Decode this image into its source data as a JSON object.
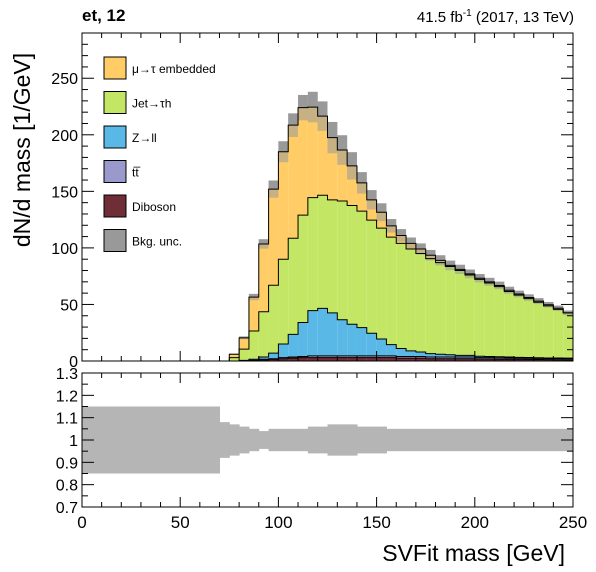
{
  "header": {
    "channel_label": "et, 12",
    "lumi_value": "41.5 fb",
    "lumi_exponent": "-1",
    "lumi_tail": " (2017, 13 TeV)"
  },
  "chart_data": {
    "type": "histogram-stacked",
    "xlabel": "SVFit mass [GeV]",
    "ylabel": "dN/d mass [1/GeV]",
    "xlim": [
      0,
      250
    ],
    "ylim": [
      0,
      290
    ],
    "ratio_ylim": [
      0.7,
      1.3
    ],
    "x_ticks": [
      "0",
      "50",
      "100",
      "150",
      "200",
      "250"
    ],
    "y_ticks": [
      "0",
      "50",
      "100",
      "150",
      "200",
      "250"
    ],
    "ratio_ticks": [
      "0.7",
      "0.8",
      "0.9",
      "1",
      "1.1",
      "1.2",
      "1.3"
    ],
    "legend_position": "top-left",
    "bin_edges": [
      0,
      70,
      75,
      80,
      85,
      90,
      95,
      100,
      105,
      110,
      115,
      120,
      125,
      130,
      135,
      140,
      145,
      150,
      155,
      160,
      165,
      170,
      175,
      180,
      185,
      190,
      195,
      200,
      205,
      210,
      215,
      220,
      225,
      230,
      235,
      240,
      245,
      250
    ],
    "series": [
      {
        "name": "Diboson",
        "label": "Diboson",
        "color": "#6f2d35",
        "values": [
          0,
          0,
          0,
          0,
          0.5,
          1,
          1.5,
          2,
          2.5,
          3,
          3,
          3,
          3,
          3,
          3,
          3,
          3,
          3,
          3,
          2.5,
          2.5,
          2.5,
          2,
          2,
          2,
          2,
          2,
          1.8,
          1.8,
          1.6,
          1.5,
          1.5,
          1.4,
          1.3,
          1.2,
          1.1,
          1
        ]
      },
      {
        "name": "ttbar",
        "label": "tt̅",
        "color": "#9999cc",
        "values": [
          0,
          0,
          0,
          0,
          0,
          0.5,
          0.5,
          1,
          1,
          1,
          1.5,
          1.5,
          1.5,
          1.5,
          1.5,
          1.5,
          1.5,
          1.5,
          1.5,
          1.5,
          1.5,
          1.5,
          1.5,
          1.5,
          1.5,
          1.5,
          1.5,
          1.2,
          1.2,
          1.2,
          1.2,
          1,
          1,
          1,
          1,
          1,
          1
        ]
      },
      {
        "name": "Z to ll",
        "label": "Z→ll",
        "color": "#59b8e6",
        "values": [
          0,
          0,
          0,
          0.5,
          1,
          2,
          5,
          12,
          20,
          30,
          40,
          42,
          38,
          32,
          28,
          25,
          20,
          15,
          10,
          7,
          5,
          4,
          3,
          2.5,
          2,
          1.5,
          1.5,
          1.2,
          1,
          1,
          0.8,
          0.7,
          0.7,
          0.6,
          0.5,
          0.5,
          0.5
        ]
      },
      {
        "name": "Jet to tau_h",
        "label": "Jet→τ_h",
        "color": "#c3e765",
        "values": [
          0,
          0,
          3,
          10,
          25,
          40,
          60,
          75,
          85,
          95,
          100,
          100,
          100,
          105,
          105,
          103,
          100,
          98,
          95,
          93,
          90,
          87,
          84,
          81,
          78,
          75,
          71,
          68,
          65,
          62,
          58,
          55,
          52,
          49,
          46,
          43,
          40
        ]
      },
      {
        "name": "mu to tau embedded",
        "label": "μ→τ embedded",
        "color": "#ffcc66",
        "values": [
          0,
          0,
          3,
          10,
          30,
          60,
          85,
          95,
          100,
          95,
          80,
          70,
          55,
          45,
          35,
          25,
          18,
          14,
          10,
          7,
          5,
          4,
          3,
          2,
          1,
          1,
          1,
          1,
          1,
          1,
          1,
          1,
          1,
          1,
          1,
          1,
          0
        ]
      }
    ],
    "uncertainty": {
      "label": "Bkg. unc.",
      "color": "#999999",
      "ratio_lower": [
        0.85,
        0.92,
        0.93,
        0.94,
        0.95,
        0.96,
        0.95,
        0.95,
        0.95,
        0.95,
        0.94,
        0.94,
        0.93,
        0.93,
        0.93,
        0.94,
        0.94,
        0.94,
        0.95,
        0.95,
        0.95,
        0.95,
        0.95,
        0.95,
        0.95,
        0.95,
        0.95,
        0.95,
        0.95,
        0.95,
        0.95,
        0.95,
        0.95,
        0.95,
        0.95,
        0.95,
        0.95
      ],
      "ratio_upper": [
        1.15,
        1.08,
        1.07,
        1.06,
        1.05,
        1.04,
        1.05,
        1.05,
        1.05,
        1.05,
        1.06,
        1.06,
        1.07,
        1.07,
        1.07,
        1.06,
        1.06,
        1.06,
        1.05,
        1.05,
        1.05,
        1.05,
        1.05,
        1.05,
        1.05,
        1.05,
        1.05,
        1.05,
        1.05,
        1.05,
        1.05,
        1.05,
        1.05,
        1.05,
        1.05,
        1.05,
        1.05
      ]
    },
    "legend": [
      {
        "label": "μ→τ embedded",
        "color": "#ffcc66"
      },
      {
        "label": "Jet→τh",
        "color": "#c3e765"
      },
      {
        "label": "Z→ll",
        "color": "#59b8e6"
      },
      {
        "label": "tt̅",
        "color": "#9999cc"
      },
      {
        "label": "Diboson",
        "color": "#6f2d35"
      },
      {
        "label": "Bkg. unc.",
        "color": "#999999"
      }
    ]
  }
}
